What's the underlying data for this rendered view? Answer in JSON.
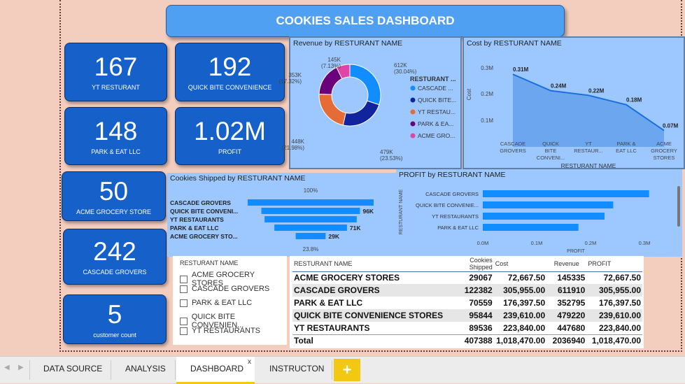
{
  "dashboard": {
    "title": "COOKIES SALES DASHBOARD"
  },
  "kpis": [
    {
      "value": "167",
      "label": "YT RESTURANT"
    },
    {
      "value": "192",
      "label": "QUICK BITE CONVENIENCE"
    },
    {
      "value": "148",
      "label": "PARK & EAT LLC"
    },
    {
      "value": "1.02M",
      "label": "PROFIT"
    },
    {
      "value": "50",
      "label": "ACME GROCERY STORE"
    },
    {
      "value": "242",
      "label": "CASCADE GROVERS"
    },
    {
      "value": "5",
      "label": "customer count"
    }
  ],
  "chart_data": [
    {
      "type": "pie",
      "title": "Revenue by RESTURANT NAME",
      "legend_title": "RESTURANT ...",
      "slices": [
        {
          "name": "CASCADE ...",
          "value": 612,
          "label": "612K",
          "pct": "(30.04%)",
          "color": "#118dff"
        },
        {
          "name": "QUICK BITE...",
          "value": 479,
          "label": "479K",
          "pct": "(23.53%)",
          "color": "#12239e"
        },
        {
          "name": "YT RESTAU...",
          "value": 448,
          "label": "448K",
          "pct": "(21.98%)",
          "color": "#e66c37"
        },
        {
          "name": "PARK & EA...",
          "value": 353,
          "label": "353K",
          "pct": "(17.32%)",
          "color": "#6b007b"
        },
        {
          "name": "ACME GRO...",
          "value": 145,
          "label": "145K",
          "pct": "(7.13%)",
          "color": "#e044a7"
        }
      ]
    },
    {
      "type": "area",
      "title": "Cost by RESTURANT NAME",
      "xlabel": "RESTURANT NAME",
      "ylabel": "Cost",
      "categories": [
        "CASCADE GROVERS",
        "QUICK BITE CONVENI...",
        "YT RESTAUR...",
        "PARK & EAT LLC",
        "ACME GROCERY STORES"
      ],
      "values": [
        0.31,
        0.24,
        0.22,
        0.18,
        0.07
      ],
      "value_labels": [
        "0.31M",
        "0.24M",
        "0.22M",
        "0.18M",
        "0.07M"
      ],
      "yticks": [
        "0.3M",
        "0.2M",
        "0.1M"
      ],
      "ylim": [
        0,
        0.35
      ]
    },
    {
      "type": "bar",
      "title": "Cookies Shipped by RESTURANT NAME",
      "categories": [
        "CASCADE GROVERS",
        "QUICK BITE CONVENI...",
        "YT RESTAURANTS",
        "PARK & EAT LLC",
        "ACME GROCERY STO..."
      ],
      "values": [
        122382,
        95844,
        89536,
        70559,
        29067
      ],
      "data_labels": [
        "",
        "96K",
        "",
        "71K",
        "29K"
      ],
      "top_label": "100%",
      "bottom_label": "23.8%"
    },
    {
      "type": "bar",
      "title": "PROFIT by RESTURANT NAME",
      "xlabel": "PROFIT",
      "ylabel": "RESTURANT NAME",
      "categories": [
        "CASCADE GROVERS",
        "QUICK BITE CONVENIE...",
        "YT RESTAURANTS",
        "PARK & EAT LLC"
      ],
      "values": [
        0.306,
        0.24,
        0.224,
        0.176
      ],
      "xticks": [
        "0.0M",
        "0.1M",
        "0.2M",
        "0.3M"
      ],
      "xlim": [
        0,
        0.3
      ]
    }
  ],
  "slicer": {
    "header": "RESTURANT NAME",
    "items": [
      "ACME GROCERY STORES",
      "CASCADE GROVERS",
      "PARK & EAT LLC",
      "QUICK BITE CONVENIEN...",
      "YT RESTAURANTS"
    ]
  },
  "table": {
    "headers": [
      "RESTURANT NAME",
      "Cookies Shipped",
      "Cost",
      "Revenue",
      "PROFIT"
    ],
    "rows": [
      [
        "ACME GROCERY STORES",
        "29067",
        "72,667.50",
        "145335",
        "72,667.50"
      ],
      [
        "CASCADE GROVERS",
        "122382",
        "305,955.00",
        "611910",
        "305,955.00"
      ],
      [
        "PARK & EAT LLC",
        "70559",
        "176,397.50",
        "352795",
        "176,397.50"
      ],
      [
        "QUICK BITE CONVENIENCE STORES",
        "95844",
        "239,610.00",
        "479220",
        "239,610.00"
      ],
      [
        "YT RESTAURANTS",
        "89536",
        "223,840.00",
        "447680",
        "223,840.00"
      ]
    ],
    "total": [
      "Total",
      "407388",
      "1,018,470.00",
      "2036940",
      "1,018,470.00"
    ]
  },
  "tabs": [
    "DATA SOURCE",
    "ANALYSIS",
    "DASHBOARD",
    "INSTRUCTON"
  ],
  "tab_close": "x",
  "add_tab": "+"
}
